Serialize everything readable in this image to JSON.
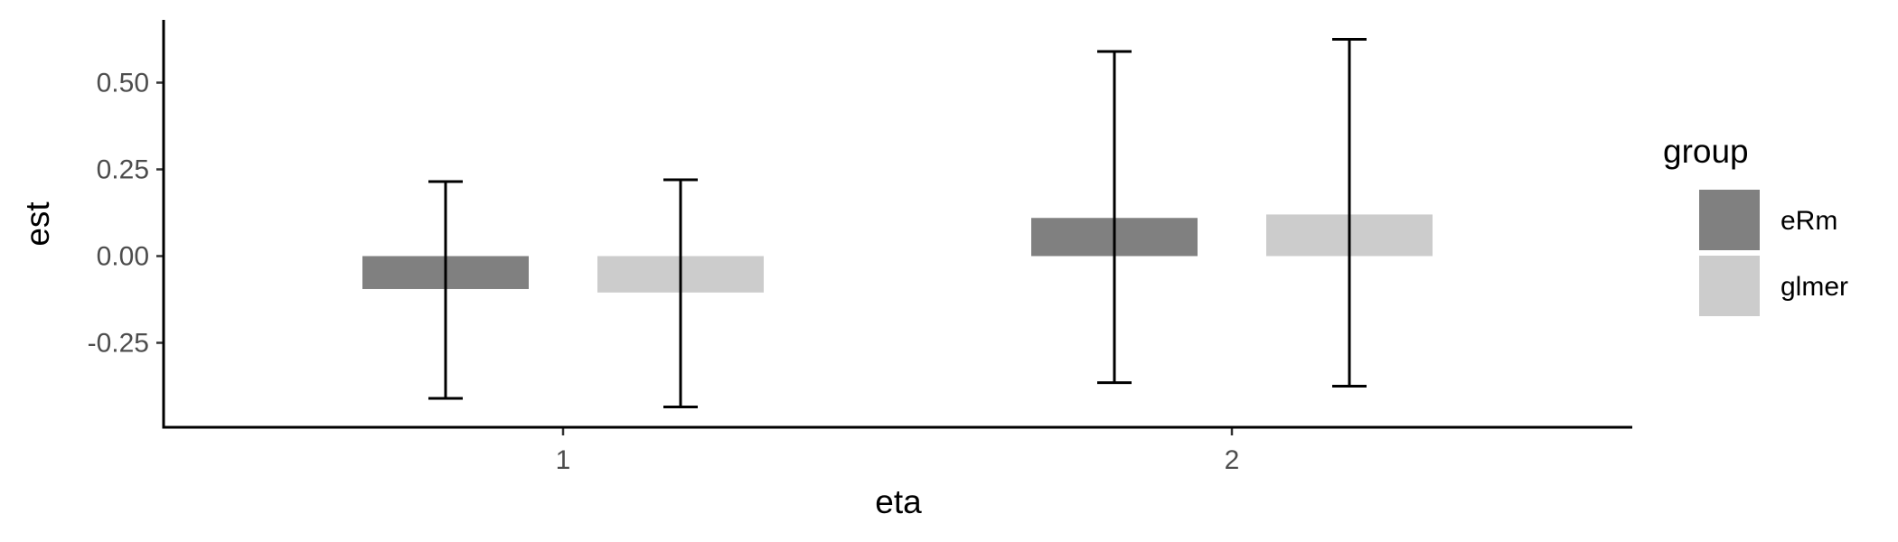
{
  "chart_data": {
    "type": "bar",
    "title": "",
    "xlabel": "eta",
    "ylabel": "est",
    "categories": [
      "1",
      "2"
    ],
    "ylim": [
      -0.48,
      0.68
    ],
    "yticks": [
      0.5,
      0.25,
      0.0,
      -0.25
    ],
    "ytick_labels": [
      "0.50",
      "0.25",
      "0.00",
      "-0.25"
    ],
    "grid": false,
    "legend": {
      "title": "group",
      "position": "right"
    },
    "series": [
      {
        "name": "eRm",
        "color": "#808080",
        "values": [
          -0.095,
          0.11
        ],
        "lower": [
          -0.41,
          -0.365
        ],
        "upper": [
          0.215,
          0.59
        ]
      },
      {
        "name": "glmer",
        "color": "#cccccc",
        "values": [
          -0.105,
          0.12
        ],
        "lower": [
          -0.435,
          -0.375
        ],
        "upper": [
          0.22,
          0.625
        ]
      }
    ]
  }
}
